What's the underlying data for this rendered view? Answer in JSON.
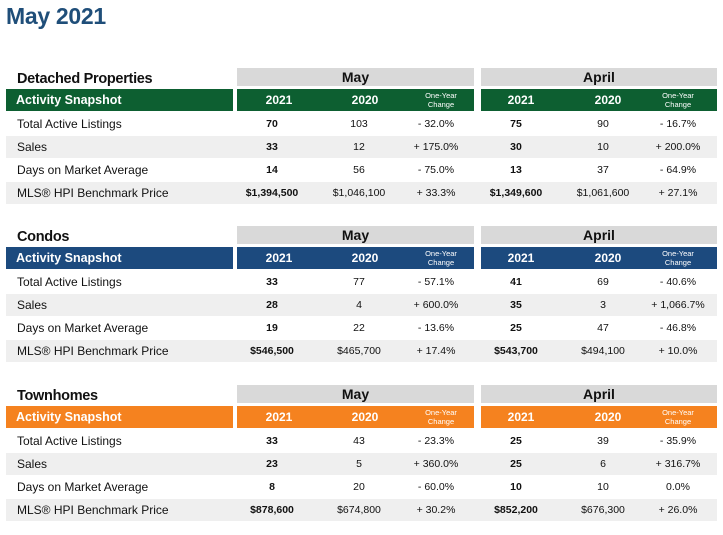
{
  "page_title": "May 2021",
  "labels": {
    "snapshot": "Activity Snapshot",
    "may": "May",
    "april": "April",
    "y2021": "2021",
    "y2020": "2020",
    "change_line1": "One-Year",
    "change_line2": "Change"
  },
  "colors": {
    "title": "#1f4e79",
    "detached": "#0d5f31",
    "condos": "#1c4a7e",
    "townhomes": "#f5821f",
    "group_header": "#d9d9d9",
    "row_shade": "#efefef"
  },
  "sections": [
    {
      "title": "Detached Properties",
      "rows": [
        {
          "label": "Total Active Listings",
          "may_2021": "70",
          "may_2020": "103",
          "may_change": "- 32.0%",
          "apr_2021": "75",
          "apr_2020": "90",
          "apr_change": "- 16.7%"
        },
        {
          "label": "Sales",
          "may_2021": "33",
          "may_2020": "12",
          "may_change": "+ 175.0%",
          "apr_2021": "30",
          "apr_2020": "10",
          "apr_change": "+ 200.0%"
        },
        {
          "label": "Days on Market Average",
          "may_2021": "14",
          "may_2020": "56",
          "may_change": "- 75.0%",
          "apr_2021": "13",
          "apr_2020": "37",
          "apr_change": "- 64.9%"
        },
        {
          "label": "MLS® HPI Benchmark Price",
          "may_2021": "$1,394,500",
          "may_2020": "$1,046,100",
          "may_change": "+ 33.3%",
          "apr_2021": "$1,349,600",
          "apr_2020": "$1,061,600",
          "apr_change": "+ 27.1%"
        }
      ]
    },
    {
      "title": "Condos",
      "rows": [
        {
          "label": "Total Active Listings",
          "may_2021": "33",
          "may_2020": "77",
          "may_change": "- 57.1%",
          "apr_2021": "41",
          "apr_2020": "69",
          "apr_change": "- 40.6%"
        },
        {
          "label": "Sales",
          "may_2021": "28",
          "may_2020": "4",
          "may_change": "+ 600.0%",
          "apr_2021": "35",
          "apr_2020": "3",
          "apr_change": "+ 1,066.7%"
        },
        {
          "label": "Days on Market Average",
          "may_2021": "19",
          "may_2020": "22",
          "may_change": "- 13.6%",
          "apr_2021": "25",
          "apr_2020": "47",
          "apr_change": "- 46.8%"
        },
        {
          "label": "MLS® HPI Benchmark Price",
          "may_2021": "$546,500",
          "may_2020": "$465,700",
          "may_change": "+ 17.4%",
          "apr_2021": "$543,700",
          "apr_2020": "$494,100",
          "apr_change": "+ 10.0%"
        }
      ]
    },
    {
      "title": "Townhomes",
      "rows": [
        {
          "label": "Total Active Listings",
          "may_2021": "33",
          "may_2020": "43",
          "may_change": "- 23.3%",
          "apr_2021": "25",
          "apr_2020": "39",
          "apr_change": "- 35.9%"
        },
        {
          "label": "Sales",
          "may_2021": "23",
          "may_2020": "5",
          "may_change": "+ 360.0%",
          "apr_2021": "25",
          "apr_2020": "6",
          "apr_change": "+ 316.7%"
        },
        {
          "label": "Days on Market Average",
          "may_2021": "8",
          "may_2020": "20",
          "may_change": "- 60.0%",
          "apr_2021": "10",
          "apr_2020": "10",
          "apr_change": "0.0%"
        },
        {
          "label": "MLS® HPI Benchmark Price",
          "may_2021": "$878,600",
          "may_2020": "$674,800",
          "may_change": "+ 30.2%",
          "apr_2021": "$852,200",
          "apr_2020": "$676,300",
          "apr_change": "+ 26.0%"
        }
      ]
    }
  ]
}
